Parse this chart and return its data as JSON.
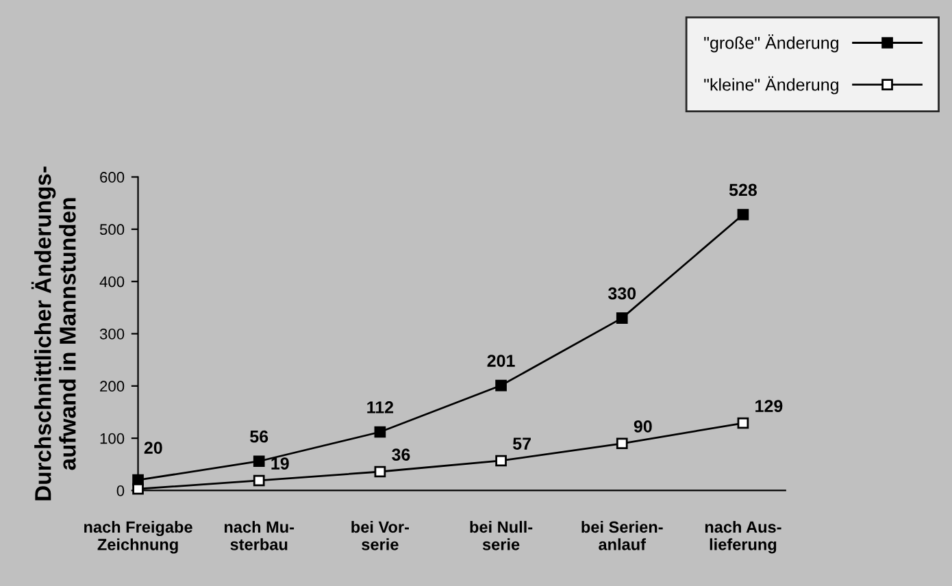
{
  "chart_data": {
    "type": "line",
    "ylabel": "Durchschnittlicher Änderungs-\naufwand in Mannstunden",
    "categories": [
      "nach Freigabe\nZeichnung",
      "nach Mu-\nsterbau",
      "bei Vor-\nserie",
      "bei Null-\nserie",
      "bei Serien-\nanlauf",
      "nach Aus-\nlieferung"
    ],
    "series": [
      {
        "name": "\"große\" Änderung",
        "color": "#000000",
        "values": [
          20,
          56,
          112,
          201,
          330,
          528
        ],
        "value_labels": [
          "20",
          "56",
          "112",
          "201",
          "330",
          "528"
        ]
      },
      {
        "name": "\"kleine\" Änderung",
        "color": "#ffffff",
        "values": [
          3,
          19,
          36,
          57,
          90,
          129
        ],
        "value_labels": [
          null,
          "19",
          "36",
          "57",
          "90",
          "129"
        ]
      }
    ],
    "ylim": [
      0,
      600
    ],
    "yticks": [
      0,
      100,
      200,
      300,
      400,
      500,
      600
    ],
    "marker": "square",
    "line_style": "solid",
    "grid": false,
    "legend": "top right"
  }
}
